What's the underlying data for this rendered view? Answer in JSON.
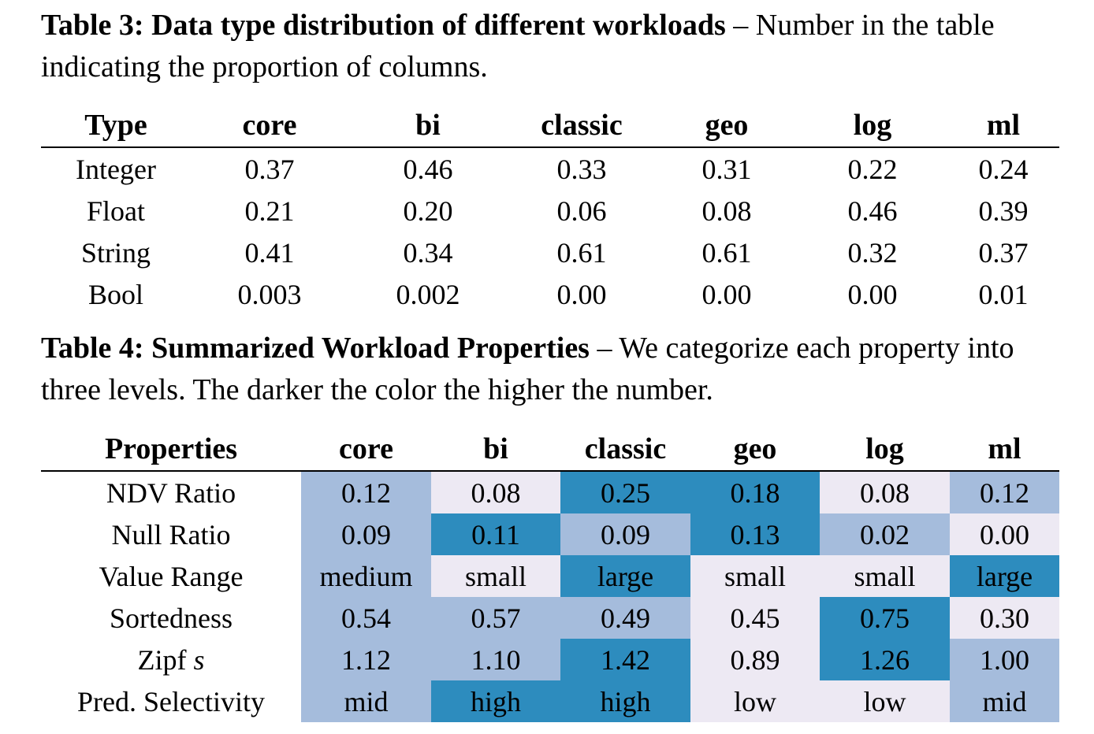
{
  "table3": {
    "caption_bold": "Table 3: Data type distribution of different workloads",
    "caption_rest": " – Number in the table indicating the proportion of columns.",
    "headers": [
      "Type",
      "core",
      "bi",
      "classic",
      "geo",
      "log",
      "ml"
    ],
    "rows": [
      {
        "label": "Integer",
        "values": [
          "0.37",
          "0.46",
          "0.33",
          "0.31",
          "0.22",
          "0.24"
        ]
      },
      {
        "label": "Float",
        "values": [
          "0.21",
          "0.20",
          "0.06",
          "0.08",
          "0.46",
          "0.39"
        ]
      },
      {
        "label": "String",
        "values": [
          "0.41",
          "0.34",
          "0.61",
          "0.61",
          "0.32",
          "0.37"
        ]
      },
      {
        "label": "Bool",
        "values": [
          "0.003",
          "0.002",
          "0.00",
          "0.00",
          "0.00",
          "0.01"
        ]
      }
    ]
  },
  "table4": {
    "caption_bold": "Table 4: Summarized Workload Properties",
    "caption_rest": " – We categorize each property into three levels. The darker the color the higher the number.",
    "headers": [
      "Properties",
      "core",
      "bi",
      "classic",
      "geo",
      "log",
      "ml"
    ],
    "level_colors": {
      "low": "#ede9f3",
      "mid": "#a5bcdc",
      "high": "#2d8cbe"
    },
    "rows": [
      {
        "label": "NDV Ratio",
        "values": [
          "0.12",
          "0.08",
          "0.25",
          "0.18",
          "0.08",
          "0.12"
        ],
        "levels": [
          "mid",
          "low",
          "high",
          "high",
          "low",
          "mid"
        ]
      },
      {
        "label": "Null Ratio",
        "values": [
          "0.09",
          "0.11",
          "0.09",
          "0.13",
          "0.02",
          "0.00"
        ],
        "levels": [
          "mid",
          "high",
          "mid",
          "high",
          "mid",
          "low"
        ]
      },
      {
        "label": "Value Range",
        "values": [
          "medium",
          "small",
          "large",
          "small",
          "small",
          "large"
        ],
        "levels": [
          "mid",
          "low",
          "high",
          "low",
          "low",
          "high"
        ]
      },
      {
        "label": "Sortedness",
        "values": [
          "0.54",
          "0.57",
          "0.49",
          "0.45",
          "0.75",
          "0.30"
        ],
        "levels": [
          "mid",
          "mid",
          "mid",
          "low",
          "high",
          "low"
        ]
      },
      {
        "label": "Zipf",
        "label_italic": "s",
        "values": [
          "1.12",
          "1.10",
          "1.42",
          "0.89",
          "1.26",
          "1.00"
        ],
        "levels": [
          "mid",
          "mid",
          "high",
          "low",
          "high",
          "mid"
        ]
      },
      {
        "label": "Pred. Selectivity",
        "values": [
          "mid",
          "high",
          "high",
          "low",
          "low",
          "mid"
        ],
        "levels": [
          "mid",
          "high",
          "high",
          "low",
          "low",
          "mid"
        ]
      }
    ]
  }
}
